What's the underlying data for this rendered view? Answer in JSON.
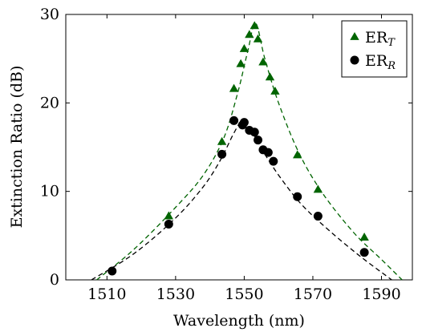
{
  "chart_data": {
    "type": "scatter",
    "title": "",
    "xlabel": "Wavelength (nm)",
    "ylabel": "Extinction Ratio (dB)",
    "xlim": [
      1498,
      1599
    ],
    "ylim": [
      0,
      30
    ],
    "xticks": [
      1510,
      1530,
      1550,
      1570,
      1590
    ],
    "yticks": [
      0,
      10,
      20,
      30
    ],
    "grid": false,
    "legend_position": "top-right",
    "series": [
      {
        "name": "ER",
        "subscript": "T",
        "color": "#006400",
        "marker": "triangle",
        "points": [
          {
            "x": 1528.0,
            "y": 7.2
          },
          {
            "x": 1543.5,
            "y": 15.6
          },
          {
            "x": 1547.0,
            "y": 21.6
          },
          {
            "x": 1549.0,
            "y": 24.4
          },
          {
            "x": 1550.0,
            "y": 26.1
          },
          {
            "x": 1551.5,
            "y": 27.7
          },
          {
            "x": 1553.0,
            "y": 28.7
          },
          {
            "x": 1554.0,
            "y": 27.2
          },
          {
            "x": 1555.5,
            "y": 24.6
          },
          {
            "x": 1557.5,
            "y": 22.9
          },
          {
            "x": 1559.0,
            "y": 21.3
          },
          {
            "x": 1565.5,
            "y": 14.1
          },
          {
            "x": 1571.5,
            "y": 10.2
          },
          {
            "x": 1585.0,
            "y": 4.8
          }
        ],
        "fit": [
          [
            1507,
            0
          ],
          [
            1518,
            3.5
          ],
          [
            1530,
            8.2
          ],
          [
            1538,
            11.8
          ],
          [
            1544,
            16.0
          ],
          [
            1548,
            21.0
          ],
          [
            1551,
            25.8
          ],
          [
            1553.3,
            29.0
          ],
          [
            1556,
            25.0
          ],
          [
            1560,
            20.0
          ],
          [
            1566,
            14.3
          ],
          [
            1573,
            9.7
          ],
          [
            1582,
            5.3
          ],
          [
            1590,
            2.3
          ],
          [
            1596,
            0
          ]
        ]
      },
      {
        "name": "ER",
        "subscript": "R",
        "color": "#000000",
        "marker": "circle",
        "points": [
          {
            "x": 1511.5,
            "y": 1.0
          },
          {
            "x": 1528.0,
            "y": 6.3
          },
          {
            "x": 1543.5,
            "y": 14.2
          },
          {
            "x": 1547.0,
            "y": 18.0
          },
          {
            "x": 1549.5,
            "y": 17.5
          },
          {
            "x": 1550.0,
            "y": 17.8
          },
          {
            "x": 1551.5,
            "y": 16.9
          },
          {
            "x": 1553.0,
            "y": 16.7
          },
          {
            "x": 1554.0,
            "y": 15.8
          },
          {
            "x": 1555.5,
            "y": 14.7
          },
          {
            "x": 1557.0,
            "y": 14.4
          },
          {
            "x": 1558.5,
            "y": 13.4
          },
          {
            "x": 1565.5,
            "y": 9.4
          },
          {
            "x": 1571.5,
            "y": 7.2
          },
          {
            "x": 1585.0,
            "y": 3.1
          }
        ],
        "fit": [
          [
            1505.5,
            0
          ],
          [
            1518,
            3.0
          ],
          [
            1530,
            7.0
          ],
          [
            1538,
            10.5
          ],
          [
            1543,
            13.5
          ],
          [
            1547,
            16.6
          ],
          [
            1549.5,
            18.0
          ],
          [
            1552,
            16.9
          ],
          [
            1556,
            14.2
          ],
          [
            1561,
            11.3
          ],
          [
            1567,
            8.4
          ],
          [
            1575,
            5.5
          ],
          [
            1584,
            2.6
          ],
          [
            1593,
            0
          ]
        ]
      }
    ]
  }
}
